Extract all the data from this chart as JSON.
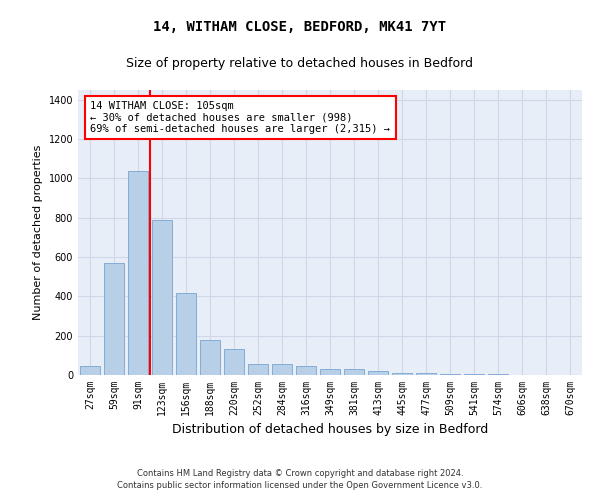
{
  "title1": "14, WITHAM CLOSE, BEDFORD, MK41 7YT",
  "title2": "Size of property relative to detached houses in Bedford",
  "xlabel": "Distribution of detached houses by size in Bedford",
  "ylabel": "Number of detached properties",
  "categories": [
    "27sqm",
    "59sqm",
    "91sqm",
    "123sqm",
    "156sqm",
    "188sqm",
    "220sqm",
    "252sqm",
    "284sqm",
    "316sqm",
    "349sqm",
    "381sqm",
    "413sqm",
    "445sqm",
    "477sqm",
    "509sqm",
    "541sqm",
    "574sqm",
    "606sqm",
    "638sqm",
    "670sqm"
  ],
  "values": [
    45,
    570,
    1040,
    790,
    415,
    180,
    130,
    57,
    55,
    47,
    28,
    28,
    20,
    12,
    10,
    5,
    3,
    3,
    2,
    2,
    1
  ],
  "bar_color": "#b8cfe8",
  "bar_edgecolor": "#6699cc",
  "background_color": "#e8eef8",
  "grid_color": "#d0d8e8",
  "annotation_text_line1": "14 WITHAM CLOSE: 105sqm",
  "annotation_text_line2": "← 30% of detached houses are smaller (998)",
  "annotation_text_line3": "69% of semi-detached houses are larger (2,315) →",
  "red_line_x": 2.5,
  "ylim": [
    0,
    1450
  ],
  "yticks": [
    0,
    200,
    400,
    600,
    800,
    1000,
    1200,
    1400
  ],
  "footer1": "Contains HM Land Registry data © Crown copyright and database right 2024.",
  "footer2": "Contains public sector information licensed under the Open Government Licence v3.0.",
  "title1_fontsize": 10,
  "title2_fontsize": 9,
  "ylabel_fontsize": 8,
  "xlabel_fontsize": 9,
  "tick_fontsize": 7,
  "footer_fontsize": 6
}
